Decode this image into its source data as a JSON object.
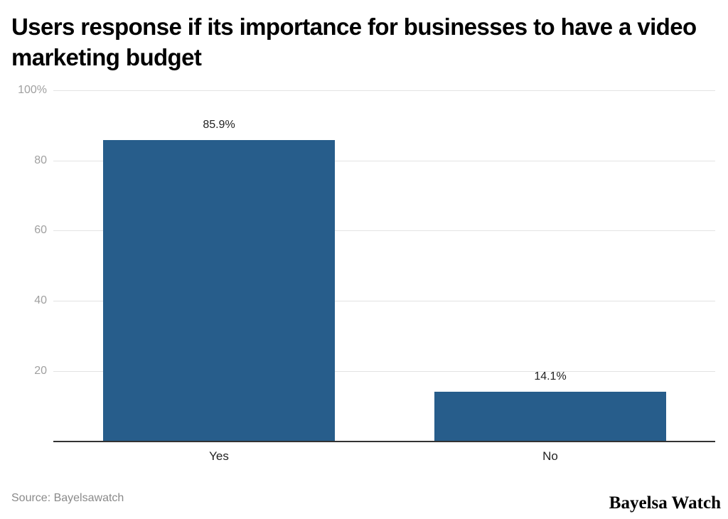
{
  "title": "Users response if its importance for businesses to have a video marketing budget",
  "source": "Source: Bayelsawatch",
  "brand": "Bayelsa Watch",
  "colors": {
    "bar": "#275d8b",
    "grid": "#e3e3e3",
    "axis": "#333333"
  },
  "y_ticks": [
    {
      "value": 100,
      "label": "100%"
    },
    {
      "value": 80,
      "label": "80"
    },
    {
      "value": 60,
      "label": "60"
    },
    {
      "value": 40,
      "label": "40"
    },
    {
      "value": 20,
      "label": "20"
    }
  ],
  "bars": [
    {
      "category": "Yes",
      "value": 85.9,
      "label": "85.9%"
    },
    {
      "category": "No",
      "value": 14.1,
      "label": "14.1%"
    }
  ],
  "chart_data": {
    "type": "bar",
    "title": "Users response if its importance for businesses to have a video marketing budget",
    "categories": [
      "Yes",
      "No"
    ],
    "values": [
      85.9,
      14.1
    ],
    "data_labels": [
      "85.9%",
      "14.1%"
    ],
    "xlabel": "",
    "ylabel": "",
    "ylim": [
      0,
      100
    ],
    "y_ticks": [
      20,
      40,
      60,
      80,
      100
    ],
    "y_tick_format": "percent on top tick",
    "grid": true,
    "legend": null,
    "source": "Source: Bayelsawatch"
  }
}
